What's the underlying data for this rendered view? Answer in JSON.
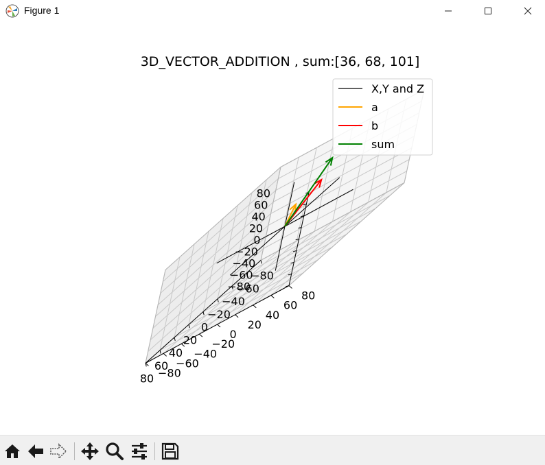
{
  "window": {
    "title": "Figure 1",
    "app_icon": "matplotlib-icon",
    "controls": [
      "minimize-icon",
      "maximize-icon",
      "close-icon"
    ]
  },
  "figure": {
    "title": "3D_VECTOR_ADDITION , sum:[36, 68, 101]"
  },
  "chart_data": {
    "type": "3d-quiver",
    "title": "3D_VECTOR_ADDITION , sum:[36, 68, 101]",
    "xlim": [
      -80,
      80
    ],
    "ylim": [
      -80,
      80
    ],
    "zlim": [
      -80,
      80
    ],
    "x_ticks": [
      "−80",
      "−60",
      "−40",
      "−20",
      "0",
      "20",
      "40",
      "60",
      "80"
    ],
    "y_ticks": [
      "−80",
      "−60",
      "−40",
      "−20",
      "0",
      "20",
      "40",
      "60",
      "80"
    ],
    "z_ticks": [
      "−80",
      "−60",
      "−40",
      "−20",
      "0",
      "20",
      "40",
      "60",
      "80"
    ],
    "grid": true,
    "legend_position": "top-right",
    "legend": [
      {
        "label": "X,Y and Z",
        "color": "#000000"
      },
      {
        "label": "a",
        "color": "#ffa500"
      },
      {
        "label": "b",
        "color": "#ff0000"
      },
      {
        "label": "sum",
        "color": "#008000"
      }
    ],
    "vectors": [
      {
        "name": "a",
        "color": "#ffa500",
        "origin": [
          0,
          0,
          0
        ],
        "components": [
          30,
          30,
          46
        ]
      },
      {
        "name": "b",
        "color": "#ff0000",
        "origin": [
          0,
          0,
          0
        ],
        "components": [
          6,
          38,
          55
        ]
      },
      {
        "name": "sum",
        "color": "#008000",
        "origin": [
          0,
          0,
          0
        ],
        "components": [
          36,
          68,
          101
        ]
      }
    ]
  },
  "toolbar": {
    "tools": [
      {
        "name": "home",
        "icon": "home-icon"
      },
      {
        "name": "back",
        "icon": "back-arrow-icon"
      },
      {
        "name": "forward",
        "icon": "forward-arrow-icon"
      },
      {
        "name": "pan",
        "icon": "pan-icon"
      },
      {
        "name": "zoom",
        "icon": "zoom-icon"
      },
      {
        "name": "configure",
        "icon": "sliders-icon"
      },
      {
        "name": "save",
        "icon": "save-icon"
      }
    ]
  }
}
